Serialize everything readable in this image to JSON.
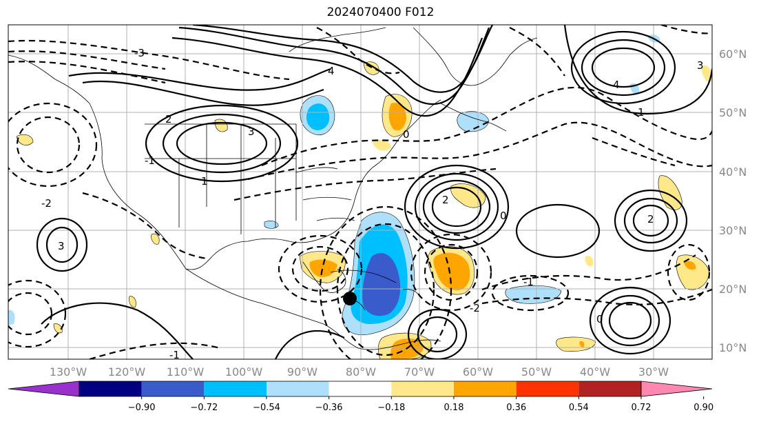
{
  "title": "2024070400 F012",
  "lat_labels": [
    "60°N",
    "50°N",
    "40°N",
    "30°N",
    "20°N",
    "10°N"
  ],
  "lon_labels": [
    "130°W",
    "120°W",
    "110°W",
    "100°W",
    "90°W",
    "80°W",
    "70°W",
    "60°W",
    "50°W",
    "40°W",
    "30°W"
  ],
  "colorbar": {
    "ticks": [
      "−0.90",
      "−0.72",
      "−0.54",
      "−0.36",
      "−0.18",
      "0.18",
      "0.36",
      "0.54",
      "0.72",
      "0.90"
    ],
    "colors": [
      "#9932cc",
      "#000080",
      "#3a5bcc",
      "#00bfff",
      "#aee0fb",
      "#ffffff",
      "#ffe88a",
      "#ffa500",
      "#ff3300",
      "#b22222",
      "#ff88b0"
    ]
  },
  "contour_labels": [
    "4",
    "3",
    "2",
    "1",
    "0",
    "-1",
    "-2",
    "-3",
    "4",
    "3",
    "2",
    "0",
    "-1",
    "2",
    "3",
    "1",
    "0",
    "-1",
    "-2"
  ],
  "marker": {
    "type": "storm-center",
    "lat": 18,
    "lon": "83°W"
  }
}
